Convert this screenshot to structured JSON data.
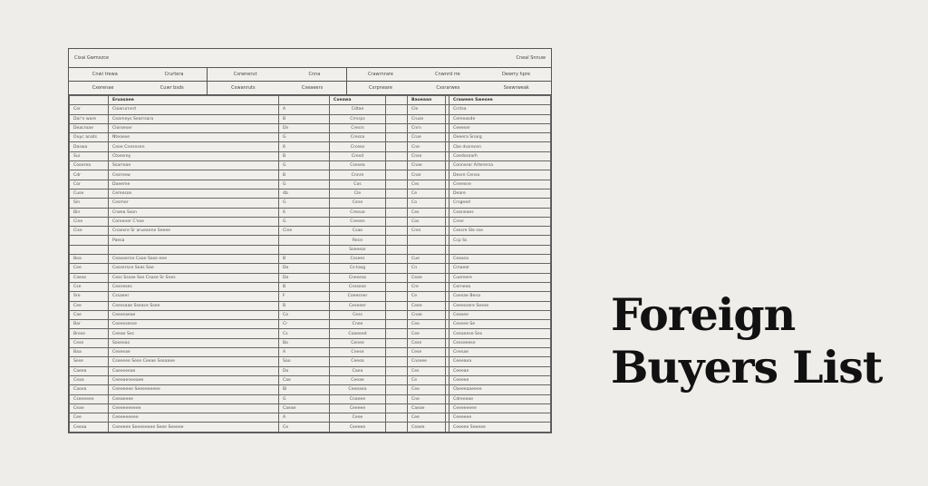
{
  "title_line1": "Foreign",
  "title_line2": "Buyers List",
  "sheet": {
    "heading_left": "Cixai Gwmxzce",
    "heading_right": "Cneal Snnuw",
    "sub_row1": [
      [
        "Cnwi trewa",
        "Crurtera"
      ],
      [
        "Csrwnerut",
        "Cnna"
      ],
      [
        "Crawrnrare",
        "Cnwnrd rre",
        "Dewrry hpre"
      ]
    ],
    "sub_row2": [
      [
        "Cxerenae",
        "Cuwr bsds"
      ],
      [
        "Cxwanruts",
        "Cxeaeers"
      ],
      [
        "Cxrpneare",
        "Cxsrarwes",
        "Ssewrweak"
      ]
    ],
    "column_headers": [
      "",
      "Eruasaee",
      "",
      "Cxeswa",
      "",
      "Baoeaan",
      "",
      "Craween Swesee"
    ],
    "rows": [
      [
        "Cor",
        "Cloarurnnrt",
        "A",
        "Cdtae",
        "",
        "Cle",
        "",
        "Crctsa"
      ],
      [
        "Dar'n ware",
        "Cearneys Searrsara",
        "B",
        "Crrsrps",
        "",
        "Cruse",
        "",
        "Cemeasde"
      ],
      [
        "Deacroae",
        "Cloroeser",
        "Dn",
        "Cresrs",
        "",
        "Cnrn",
        "",
        "Ceeeser"
      ],
      [
        "Ouyc anats",
        "Nteoexe",
        "G",
        "Cressa",
        "",
        "Crue",
        "",
        "Oeeera Snarg"
      ],
      [
        "Daswa",
        "Ceoe Cnesnsen",
        "6",
        "Crcees",
        "",
        "Cne",
        "",
        "Cbe dssrecen"
      ],
      [
        "Sui",
        "Ctoesrey",
        "B",
        "Cresd",
        "",
        "Cnse",
        "",
        "Coedssearh"
      ],
      [
        "Cooerea",
        "Ssarreae",
        "G",
        "Csesea",
        "",
        "Cnae",
        "",
        "Connerar Arterersa"
      ],
      [
        "Cdr",
        "Cesrnew",
        "B",
        "Cnnre",
        "",
        "Cnar",
        "",
        "Dexre Censa"
      ],
      [
        "Cor",
        "Daeeme",
        "G",
        "Cos",
        "",
        "Ces",
        "",
        "Cneesne"
      ],
      [
        "Cuse",
        "Cemeson",
        "4b",
        "Cle",
        "",
        "Ce",
        "",
        "Deare"
      ],
      [
        "Sin",
        "Cesmer",
        "G",
        "Csne",
        "",
        "Co",
        "",
        "Crsgeed"
      ],
      [
        "Bin",
        "Crwea Sson",
        "6",
        "Creeue",
        "",
        "Ces",
        "",
        "Ceaneaes"
      ],
      [
        "Cine",
        "Comener C'ese",
        "G",
        "Creeen",
        "",
        "Cos",
        "",
        "Cresr"
      ],
      [
        "Cise",
        "Cnaesre Sr arueaene Seeee",
        "Cine",
        "Csao",
        "",
        "Cres",
        "",
        "Cessre Sle sse"
      ],
      [
        "",
        "Paesa",
        "",
        "Rece",
        "",
        "",
        "",
        "Ccp Ss"
      ],
      [
        "",
        "",
        "",
        "Sseeear",
        "",
        "",
        "",
        "",
        ""
      ],
      [
        "Boa",
        "Ceasoerne Coae Sase eee",
        "B",
        "Cssees",
        "",
        "Cue",
        "",
        "Cesoea"
      ],
      [
        "Cee",
        "Cossersce Seas Sae",
        "Do",
        "Cs-tasg",
        "",
        "Cn",
        "",
        "Cmaeer"
      ],
      [
        "Caese",
        "Cess Sssae Sse Cnase Sr Snes",
        "Do",
        "Cneseas",
        "",
        "Ceae",
        "",
        "Cuemere"
      ],
      [
        "Cse",
        "Cesneses",
        "B",
        "Cnssese",
        "",
        "Cre",
        "",
        "Cerneea"
      ],
      [
        "Sre",
        "Cssaeer",
        "F",
        "Coeesner",
        "",
        "Ce",
        "",
        "Coesae Bena"
      ],
      [
        "Cee",
        "Ceessaae Sseace Ssee",
        "B",
        "Ceseeer",
        "",
        "Ceee",
        "",
        "Ceeessere Seese"
      ],
      [
        "Cae",
        "Ceeseaeae",
        "Co",
        "Cess",
        "",
        "Cnae",
        "",
        "Ceasee"
      ],
      [
        "Bar",
        "Coeessesse",
        "Cr",
        "Cnee",
        "",
        "Ceo",
        "",
        "Ceseee Se"
      ],
      [
        "Brese",
        "Ceeae Sec",
        "Cs",
        "Coaeeed",
        "",
        "Cee",
        "",
        "Ceeaeese Ses"
      ],
      [
        "Cese",
        "Saseeas",
        "Bo",
        "Cenee",
        "",
        "Cese",
        "",
        "Cesseeese"
      ],
      [
        "Baa",
        "Ceseeae",
        "A",
        "Cnese",
        "",
        "Cese",
        "",
        "Cnesae"
      ],
      [
        "Sese",
        "Cseeeee Sese Ceeae Sseaaee",
        "Sao",
        "Ceeea",
        "",
        "Cnseee",
        "",
        "Ceeeaea"
      ],
      [
        "Caeea",
        "Caeeseeae",
        "Do",
        "Caea",
        "",
        "Ces",
        "",
        "Ceeeae"
      ],
      [
        "Ceaa",
        "Ceeeaeneeaee",
        "Cae",
        "Ceeae",
        "",
        "Ce",
        "",
        "Ceeeee"
      ],
      [
        "Caoea",
        "Ceeeeeee Seeeeeeeee",
        "Bi",
        "Ceeeaea",
        "",
        "Ceo",
        "",
        "Cbeeeaaeeee"
      ],
      [
        "Cseeeeee",
        "Ceeaeeee",
        "G",
        "Cnaeee",
        "",
        "Cne",
        "",
        "Cdreeeae"
      ],
      [
        "Ceae",
        "Ceeeeeeeeee",
        "Caeae",
        "Ceeeee",
        "",
        "Caeae",
        "",
        "Ceeeeeeee"
      ],
      [
        "Cee",
        "Ceeeeeeeee",
        "A",
        "Ceee",
        "",
        "Cee",
        "",
        "Ceeeeee"
      ],
      [
        "Ceeaa",
        "Ceeeeee Seeeeeeee Seee Seeeee",
        "Ce",
        "Ceeeee",
        "",
        "Ceaee",
        "",
        "Ceeeee Seeeee"
      ]
    ]
  }
}
